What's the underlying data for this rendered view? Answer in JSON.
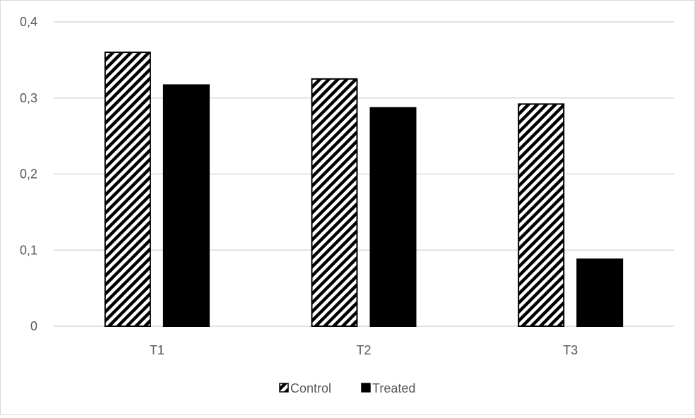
{
  "chart_data": {
    "type": "bar",
    "categories": [
      "T1",
      "T2",
      "T3"
    ],
    "series": [
      {
        "name": "Control",
        "values": [
          0.36,
          0.325,
          0.292
        ],
        "pattern": "diagonal-hatch",
        "color": "#000000"
      },
      {
        "name": "Treated",
        "values": [
          0.317,
          0.287,
          0.088
        ],
        "pattern": "solid",
        "color": "#000000"
      }
    ],
    "title": "",
    "xlabel": "",
    "ylabel": "",
    "ylim": [
      0,
      0.4
    ],
    "yticks": [
      0,
      0.1,
      0.2,
      0.3,
      0.4
    ],
    "ytick_labels": [
      "0",
      "0,1",
      "0,2",
      "0,3",
      "0,4"
    ],
    "grid": true,
    "gridline_color": "#d9d9d9",
    "legend_position": "bottom"
  }
}
